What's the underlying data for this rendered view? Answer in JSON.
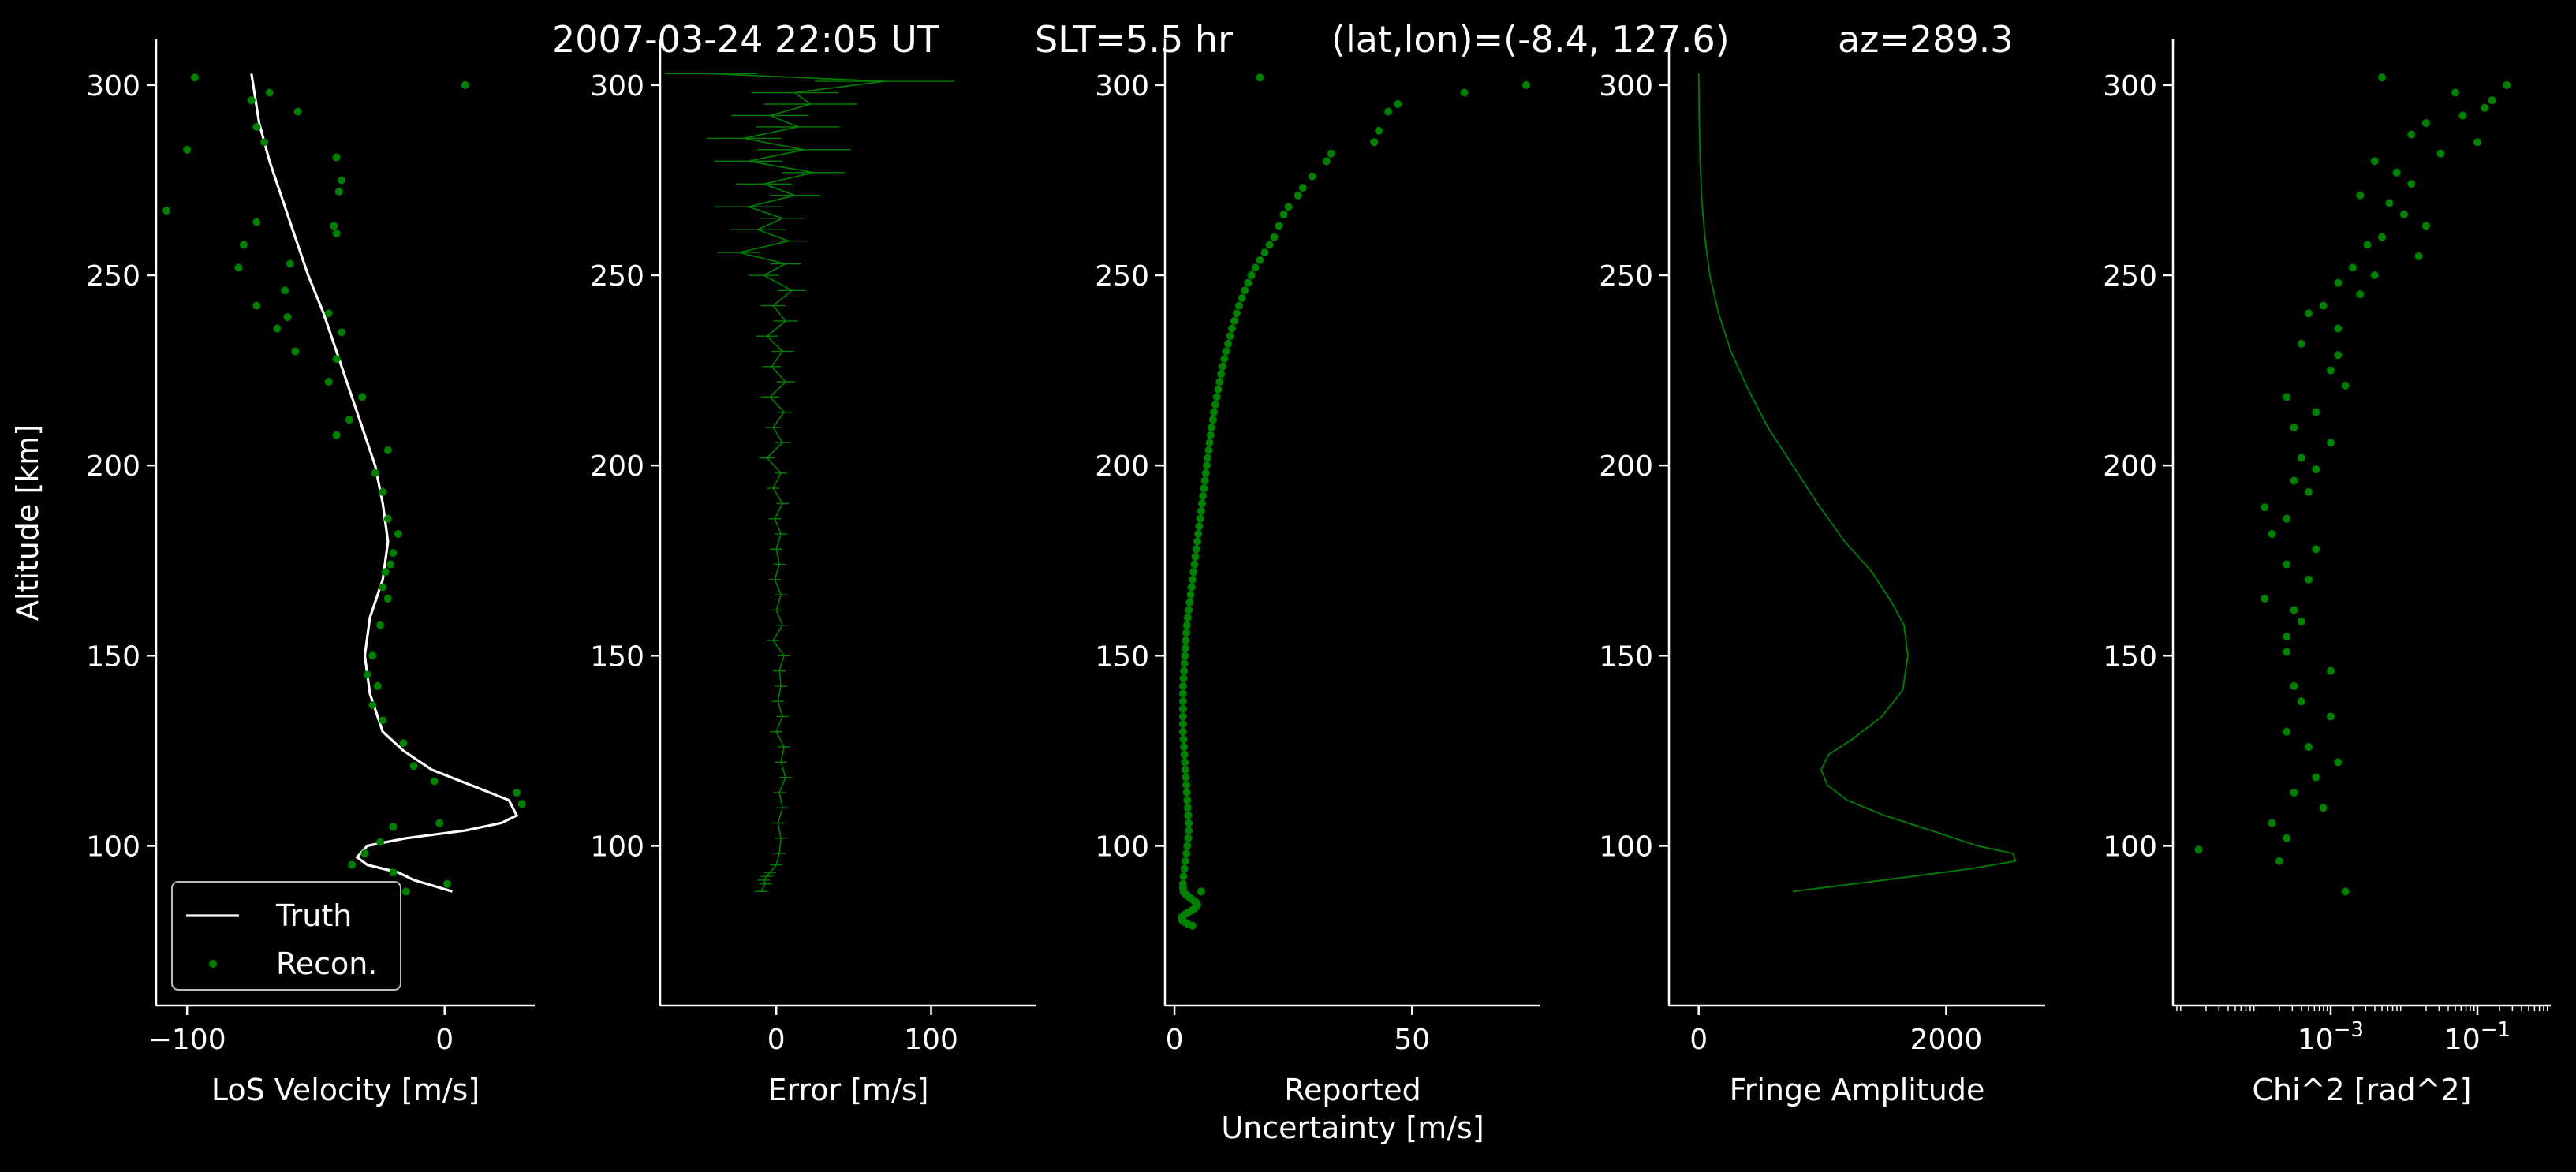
{
  "header": {
    "date_time": "2007-03-24 22:05 UT",
    "slt": "SLT=5.5 hr",
    "latlon": "(lat,lon)=(-8.4, 127.6)",
    "azimuth": "az=289.3"
  },
  "colors": {
    "background": "#000000",
    "axes": "#ffffff",
    "recon": "#008000",
    "truth": "#ffffff"
  },
  "chart_data": [
    {
      "type": "line",
      "xlabel": "LoS Velocity [m/s]",
      "ylabel": "Altitude [km]",
      "xlim": [
        -112,
        35
      ],
      "ylim": [
        58,
        312
      ],
      "xticks": [
        -100,
        0
      ],
      "xtick_labels": [
        "−100",
        "0"
      ],
      "yticks": [
        100,
        150,
        200,
        250,
        300
      ],
      "ytick_labels": [
        "100",
        "150",
        "200",
        "250",
        "300"
      ],
      "legend": {
        "location": "lower-left",
        "entries": [
          "Truth",
          "Recon."
        ]
      },
      "series": [
        {
          "name": "Truth",
          "style": "line",
          "color": "#ffffff",
          "x": [
            -75,
            -72,
            -68,
            -63,
            -58,
            -53,
            -47,
            -42,
            -37,
            -32,
            -27,
            -24,
            -22,
            -24,
            -29,
            -31,
            -29,
            -24,
            -16,
            -5,
            10,
            25,
            28,
            22,
            8,
            -15,
            -30,
            -34,
            -30,
            -18,
            -12,
            3
          ],
          "y": [
            303,
            290,
            280,
            270,
            260,
            250,
            240,
            230,
            220,
            210,
            200,
            190,
            180,
            170,
            160,
            150,
            140,
            130,
            125,
            120,
            116,
            112,
            108,
            106,
            104,
            102,
            100,
            97,
            95,
            93,
            91,
            88
          ]
        },
        {
          "name": "Recon.",
          "style": "scatter",
          "color": "#008000",
          "x": [
            -97,
            8,
            -68,
            -75,
            -57,
            -73,
            -70,
            -100,
            -42,
            -40,
            -41,
            -108,
            -73,
            -43,
            -42,
            -78,
            -80,
            -60,
            -62,
            -73,
            -45,
            -61,
            -65,
            -40,
            -58,
            -42,
            -45,
            -32,
            -37,
            -42,
            -22,
            -27,
            -24,
            -22,
            -18,
            -20,
            -21,
            -23,
            -24,
            -22,
            -25,
            -28,
            -30,
            -26,
            -28,
            -24,
            -16,
            -12,
            -4,
            28,
            30,
            -20,
            -2,
            -25,
            -31,
            -36,
            -20,
            1,
            -15
          ],
          "y": [
            302,
            300,
            298,
            296,
            293,
            289,
            285,
            283,
            281,
            275,
            272,
            267,
            264,
            263,
            261,
            258,
            252,
            253,
            246,
            242,
            240,
            239,
            236,
            235,
            230,
            228,
            222,
            218,
            212,
            208,
            204,
            198,
            193,
            186,
            182,
            177,
            174,
            172,
            168,
            165,
            158,
            150,
            145,
            142,
            137,
            133,
            127,
            121,
            117,
            114,
            111,
            105,
            106,
            101,
            98,
            95,
            93,
            90,
            88
          ]
        }
      ]
    },
    {
      "type": "line",
      "xlabel": "Error [m/s]",
      "xlim": [
        -75,
        168
      ],
      "ylim": [
        58,
        312
      ],
      "xticks": [
        0,
        100
      ],
      "xtick_labels": [
        "0",
        "100"
      ],
      "yticks": [
        100,
        150,
        200,
        250,
        300
      ],
      "ytick_labels": [
        "100",
        "150",
        "200",
        "250",
        "300"
      ],
      "series": [
        {
          "name": "",
          "style": "errorbar",
          "color": "#008000",
          "x": [
            -42,
            70,
            12,
            22,
            -4,
            14,
            -21,
            18,
            -18,
            24,
            -8,
            12,
            -18,
            4,
            -12,
            8,
            -24,
            6,
            -8,
            10,
            -2,
            6,
            -6,
            4,
            -3,
            6,
            -4,
            5,
            -2,
            4,
            -6,
            3,
            -2,
            4,
            -1,
            3,
            0,
            2,
            -1,
            3,
            0,
            4,
            -2,
            5,
            2,
            3,
            1,
            4,
            0,
            5,
            3,
            6,
            2,
            4,
            1,
            3,
            2,
            0,
            -4,
            -6,
            -8,
            -7,
            -10
          ],
          "y": [
            303,
            301,
            298,
            295,
            292,
            289,
            286,
            283,
            280,
            277,
            274,
            271,
            268,
            265,
            262,
            259,
            256,
            253,
            250,
            246,
            242,
            238,
            234,
            230,
            226,
            222,
            218,
            214,
            210,
            206,
            202,
            198,
            194,
            190,
            186,
            182,
            178,
            174,
            170,
            166,
            162,
            158,
            154,
            150,
            146,
            142,
            138,
            134,
            130,
            126,
            122,
            118,
            114,
            110,
            106,
            102,
            98,
            95,
            93,
            92,
            91,
            90,
            88
          ],
          "xerr": [
            30,
            45,
            28,
            30,
            25,
            27,
            24,
            30,
            22,
            20,
            18,
            16,
            22,
            14,
            18,
            12,
            14,
            10,
            10,
            9,
            8,
            8,
            7,
            7,
            6,
            6,
            6,
            5,
            5,
            5,
            5,
            4,
            4,
            4,
            4,
            4,
            4,
            4,
            4,
            4,
            4,
            4,
            4,
            4,
            4,
            4,
            4,
            4,
            4,
            4,
            4,
            4,
            4,
            4,
            4,
            4,
            4,
            4,
            4,
            4,
            4,
            4,
            4
          ]
        }
      ]
    },
    {
      "type": "scatter",
      "xlabel": "Reported\nUncertainty [m/s]",
      "xlim": [
        -2,
        77
      ],
      "ylim": [
        58,
        312
      ],
      "xticks": [
        0,
        50
      ],
      "xtick_labels": [
        "0",
        "50"
      ],
      "yticks": [
        100,
        150,
        200,
        250,
        300
      ],
      "ytick_labels": [
        "100",
        "150",
        "200",
        "250",
        "300"
      ],
      "series": [
        {
          "name": "",
          "color": "#008000",
          "x": [
            74,
            61,
            47,
            45,
            43,
            42,
            33,
            32,
            29,
            27,
            26,
            24,
            23,
            22,
            21,
            20,
            19,
            18,
            17,
            16.2,
            15.5,
            14.8,
            14.2,
            13.6,
            13.1,
            12.6,
            12.1,
            11.7,
            11.3,
            10.9,
            10.5,
            10.1,
            9.8,
            9.5,
            9.2,
            8.9,
            8.6,
            8.3,
            8.1,
            7.8,
            7.6,
            7.4,
            7.2,
            7.0,
            6.8,
            6.6,
            6.4,
            6.2,
            6.0,
            5.8,
            5.6,
            5.4,
            5.2,
            5.0,
            4.8,
            4.6,
            4.4,
            4.2,
            4.0,
            3.8,
            3.6,
            3.4,
            3.2,
            3.0,
            2.8,
            2.6,
            2.5,
            2.4,
            2.3,
            2.2,
            2.1,
            2.0,
            1.9,
            1.8,
            1.8,
            1.8,
            1.8,
            1.8,
            1.8,
            1.8,
            1.9,
            2.0,
            2.1,
            2.2,
            2.3,
            2.4,
            2.5,
            2.6,
            2.7,
            2.8,
            2.9,
            3.0,
            3.0,
            2.9,
            2.7,
            2.5,
            2.3,
            2.1,
            1.9,
            1.8,
            1.8,
            1.9,
            2.2,
            2.6,
            3.1,
            3.6,
            4.2,
            4.6,
            4.8,
            4.6,
            4.2,
            3.6,
            2.9,
            2.2,
            1.7,
            1.5,
            1.6,
            2.0,
            2.8,
            3.8,
            5.6,
            18
          ],
          "y": [
            300,
            298,
            295,
            293,
            288,
            285,
            282,
            280,
            276,
            273,
            271,
            268,
            266,
            263,
            260,
            258,
            256,
            254,
            252,
            250,
            248,
            246,
            244,
            242,
            240,
            238,
            236,
            234,
            232,
            230,
            228,
            226,
            224,
            222,
            220,
            218,
            216,
            214,
            212,
            210,
            208,
            206,
            204,
            202,
            200,
            198,
            196,
            194,
            192,
            190,
            188,
            186,
            184,
            182,
            180,
            178,
            176,
            174,
            172,
            170,
            168,
            166,
            164,
            162,
            160,
            158,
            156,
            154,
            152,
            150,
            148,
            146,
            144,
            142,
            140,
            138,
            136,
            134,
            132,
            130,
            128,
            126,
            124,
            122,
            120,
            118,
            116,
            114,
            112,
            110,
            108,
            106,
            104,
            102,
            100,
            98,
            96,
            94,
            92,
            90,
            89,
            88,
            87.5,
            87,
            86.5,
            86,
            85.5,
            85,
            84.5,
            84,
            83.5,
            83,
            82.5,
            82,
            81.5,
            81,
            80.5,
            80,
            79.5,
            79,
            88,
            302
          ]
        }
      ]
    },
    {
      "type": "line",
      "xlabel": "Fringe Amplitude",
      "xlim": [
        -240,
        2800
      ],
      "ylim": [
        58,
        312
      ],
      "xticks": [
        0,
        2000
      ],
      "xtick_labels": [
        "0",
        "2000"
      ],
      "yticks": [
        100,
        150,
        200,
        250,
        300
      ],
      "ytick_labels": [
        "100",
        "150",
        "200",
        "250",
        "300"
      ],
      "series": [
        {
          "name": "",
          "color": "#008000",
          "x": [
            0,
            5,
            12,
            25,
            50,
            90,
            160,
            260,
            400,
            560,
            760,
            960,
            1180,
            1400,
            1560,
            1660,
            1690,
            1650,
            1480,
            1240,
            1050,
            990,
            1040,
            1200,
            1500,
            1880,
            2250,
            2540,
            2560,
            2200,
            1500,
            760
          ],
          "y": [
            303,
            290,
            280,
            270,
            260,
            250,
            240,
            230,
            220,
            210,
            200,
            190,
            180,
            172,
            164,
            158,
            150,
            141,
            134,
            128,
            124,
            120,
            116,
            112,
            108,
            104,
            100,
            98,
            96,
            94,
            91,
            88
          ]
        }
      ]
    },
    {
      "type": "scatter",
      "xlabel": "Chi^2 [rad^2]",
      "xscale": "log",
      "xlim_log10": [
        -5.15,
        0.0
      ],
      "ylim": [
        58,
        312
      ],
      "xticks_log10": [
        -3,
        -1
      ],
      "xtick_labels": [
        "10",
        "10"
      ],
      "xtick_exponents": [
        "−3",
        "−1"
      ],
      "yticks": [
        100,
        150,
        200,
        250,
        300
      ],
      "ytick_labels": [
        "100",
        "150",
        "200",
        "250",
        "300"
      ],
      "series": [
        {
          "name": "",
          "color": "#008000",
          "x_log10": [
            -2.3,
            -0.6,
            -1.3,
            -0.8,
            -0.9,
            -1.2,
            -1.7,
            -1.9,
            -1.0,
            -1.5,
            -2.4,
            -2.1,
            -1.9,
            -2.6,
            -2.2,
            -2.0,
            -1.7,
            -2.3,
            -2.5,
            -1.8,
            -2.7,
            -2.4,
            -2.9,
            -2.6,
            -3.1,
            -3.3,
            -2.9,
            -3.4,
            -2.9,
            -3.0,
            -2.8,
            -3.6,
            -3.2,
            -3.5,
            -3.0,
            -3.4,
            -3.2,
            -3.5,
            -3.3,
            -3.9,
            -3.6,
            -3.8,
            -3.2,
            -3.6,
            -3.3,
            -3.9,
            -3.5,
            -3.4,
            -3.6,
            -3.6,
            -3.0,
            -3.5,
            -3.4,
            -3.0,
            -3.6,
            -3.3,
            -2.9,
            -3.2,
            -3.5,
            -3.1,
            -3.8,
            -3.6,
            -4.8,
            -3.7,
            -2.8
          ],
          "y": [
            302,
            300,
            298,
            296,
            294,
            292,
            290,
            287,
            285,
            282,
            280,
            277,
            274,
            271,
            269,
            266,
            263,
            260,
            258,
            255,
            252,
            250,
            248,
            245,
            242,
            240,
            236,
            232,
            229,
            225,
            221,
            218,
            214,
            210,
            206,
            202,
            199,
            196,
            193,
            189,
            186,
            182,
            178,
            174,
            170,
            165,
            162,
            159,
            155,
            151,
            146,
            142,
            138,
            134,
            130,
            126,
            122,
            118,
            114,
            110,
            106,
            102,
            99,
            96,
            88
          ]
        }
      ]
    }
  ]
}
